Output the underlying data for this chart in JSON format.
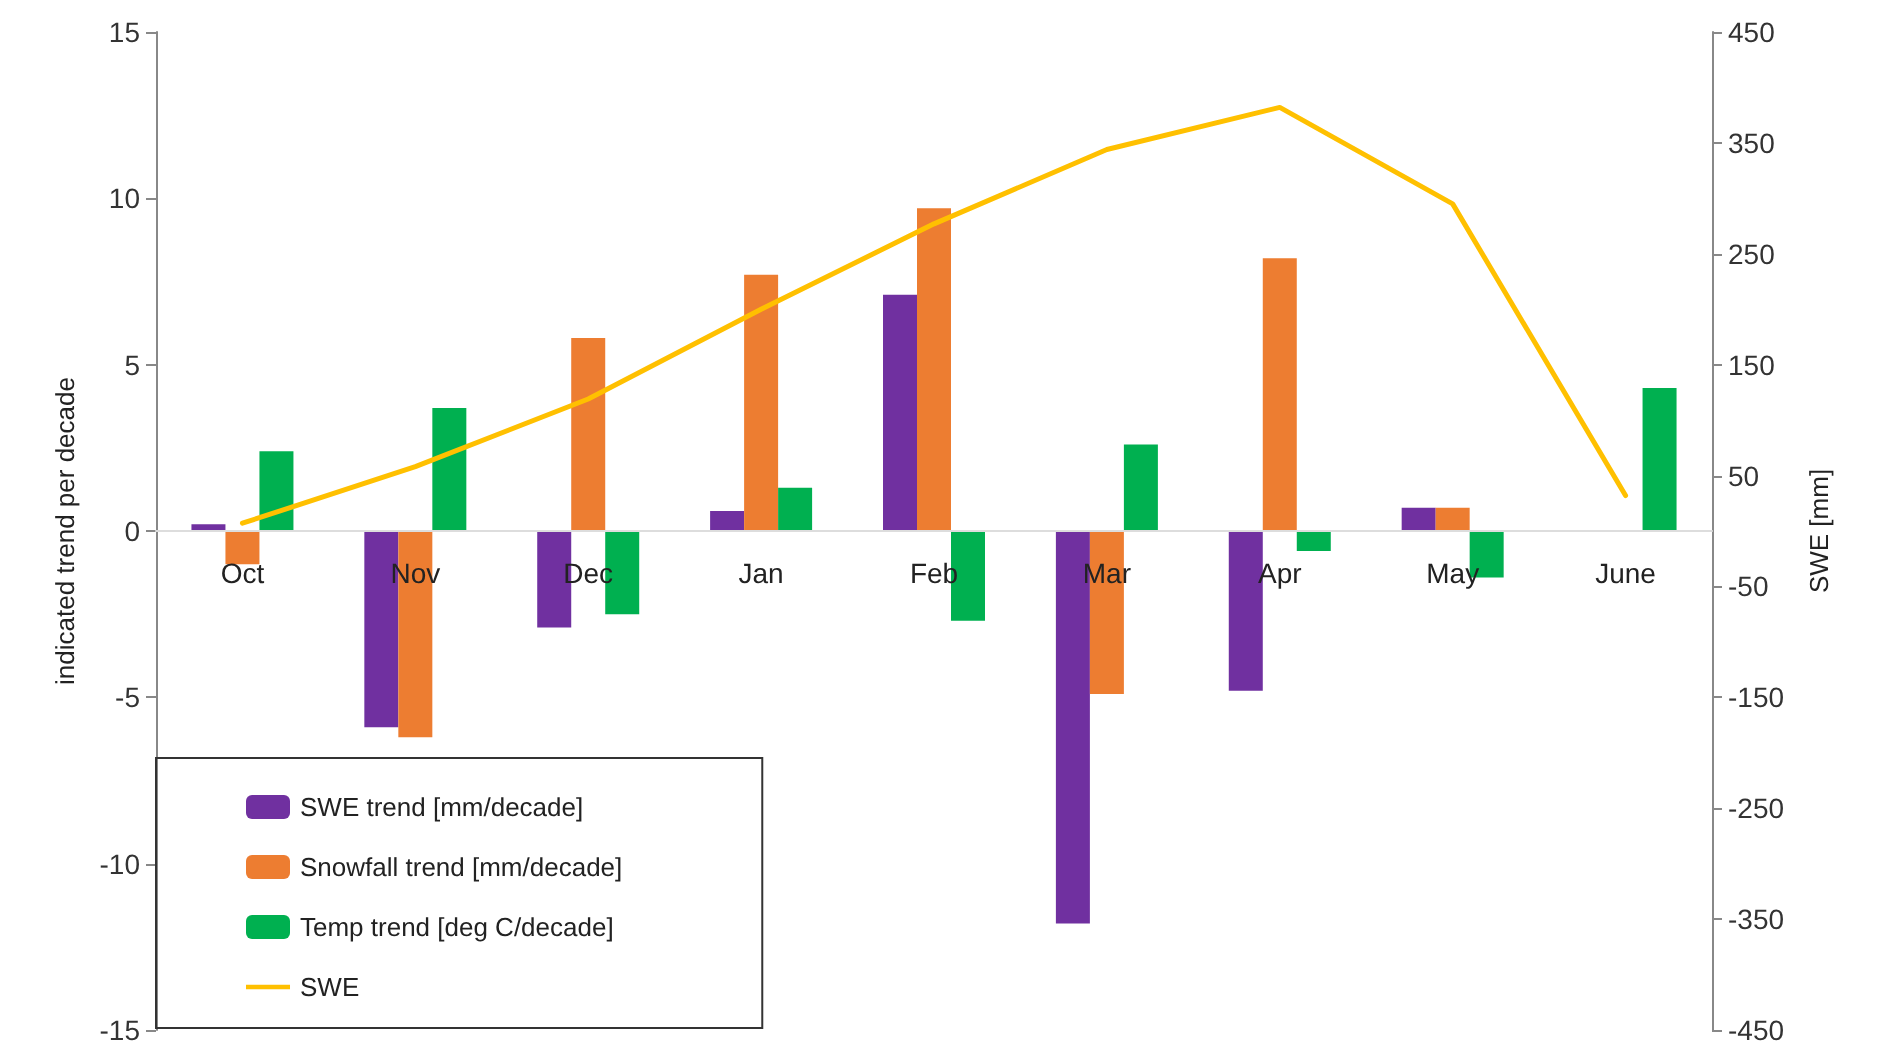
{
  "chart_data": {
    "type": "bar",
    "ylabel": "indicated trend per decade",
    "y2label": "SWE [mm]",
    "categories": [
      "Oct",
      "Nov",
      "Dec",
      "Jan",
      "Feb",
      "Mar",
      "Apr",
      "May",
      "June"
    ],
    "series": [
      {
        "name": "SWE trend [mm/decade]",
        "color": "#7030a0",
        "values": [
          0.2,
          -5.9,
          -2.9,
          0.6,
          7.1,
          -11.8,
          -4.8,
          0.7,
          null
        ]
      },
      {
        "name": "Snowfall trend [mm/decade]",
        "color": "#ed7d31",
        "values": [
          -1.0,
          -6.2,
          5.8,
          7.7,
          9.7,
          -4.9,
          8.2,
          0.7,
          null
        ]
      },
      {
        "name": "Temp trend [deg C/decade]",
        "color": "#00b050",
        "values": [
          2.4,
          3.7,
          -2.5,
          1.3,
          -2.7,
          2.6,
          -0.6,
          -1.4,
          4.3
        ]
      },
      {
        "name": "SWE",
        "type": "line",
        "axis": "y2",
        "color": "#ffc000",
        "values": [
          7,
          58,
          119,
          200,
          277,
          344,
          382,
          295,
          32
        ]
      }
    ],
    "ylim": [
      -15,
      15
    ],
    "yticks": [
      -15,
      -10,
      -5,
      0,
      5,
      10,
      15
    ],
    "y2lim": [
      -450,
      450
    ],
    "y2ticks": [
      -450,
      -350,
      -250,
      -150,
      -50,
      50,
      150,
      250,
      350,
      450
    ],
    "grid": false,
    "legend": "bottom left",
    "marker": "none",
    "line_style": "solid"
  }
}
